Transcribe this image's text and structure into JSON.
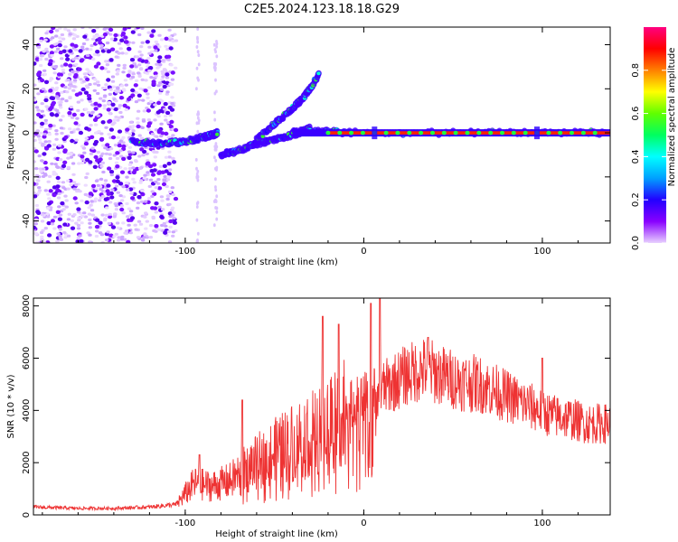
{
  "title": "C2E5.2024.123.18.18.G29",
  "chart_data": [
    {
      "type": "heatmap",
      "xlabel": "Height of straight line (km)",
      "ylabel": "Frequency (Hz)",
      "xlim": [
        -185,
        138
      ],
      "ylim": [
        -50,
        48
      ],
      "xticks": [
        -100,
        0,
        100
      ],
      "xtick_labels": [
        "-100",
        "0",
        "100"
      ],
      "yticks": [
        -40,
        -20,
        0,
        20,
        40
      ],
      "ytick_labels": [
        "-40",
        "-20",
        "0",
        "20",
        "40"
      ],
      "colorbar": {
        "label": "Normalized spectral amplitude",
        "range": [
          0,
          1
        ],
        "ticks": [
          0.0,
          0.2,
          0.4,
          0.6,
          0.8
        ],
        "tick_labels": [
          "0.0",
          "0.2",
          "0.4",
          "0.6",
          "0.8"
        ],
        "colormap": [
          "#e8d0ff",
          "#8800ff",
          "#2200ff",
          "#00a0ff",
          "#00ffff",
          "#00ff60",
          "#60ff00",
          "#ffff00",
          "#ff8000",
          "#ff0000",
          "#ff0080"
        ]
      },
      "traces": [
        {
          "x": [
            -130,
            -115,
            -100,
            -90,
            -85,
            -82
          ],
          "y": [
            -4,
            -5,
            -4,
            -2,
            -1,
            0
          ]
        },
        {
          "x": [
            -80,
            -70,
            -60,
            -50,
            -40,
            -30
          ],
          "y": [
            -10,
            -8,
            -5,
            -3,
            -1,
            2
          ]
        },
        {
          "x": [
            -60,
            -50,
            -40,
            -35,
            -30,
            -25
          ],
          "y": [
            -3,
            4,
            11,
            15,
            20,
            27
          ]
        },
        {
          "x": [
            -40,
            -20,
            0,
            50,
            100,
            138
          ],
          "y": [
            1,
            0.5,
            0,
            0,
            0,
            0
          ]
        }
      ],
      "grid": false
    },
    {
      "type": "line",
      "xlabel": "Height of straight line (km)",
      "ylabel": "SNR (10 * v/v)",
      "xlim": [
        -185,
        138
      ],
      "ylim": [
        0,
        8300
      ],
      "xticks": [
        -100,
        0,
        100
      ],
      "xtick_labels": [
        "-100",
        "0",
        "100"
      ],
      "yticks": [
        0,
        2000,
        4000,
        6000,
        8000
      ],
      "ytick_labels": [
        "0",
        "2000",
        "4000",
        "6000",
        "8000"
      ],
      "series": [
        {
          "color": "#ee3333",
          "x": [
            -185,
            -160,
            -140,
            -120,
            -105,
            -95,
            -85,
            -75,
            -65,
            -55,
            -45,
            -35,
            -25,
            -15,
            -5,
            5,
            15,
            25,
            35,
            45,
            55,
            65,
            75,
            85,
            95,
            105,
            115,
            125,
            138
          ],
          "y": [
            300,
            250,
            250,
            300,
            400,
            1200,
            1100,
            1300,
            1800,
            2200,
            2600,
            3000,
            3300,
            3900,
            4300,
            4600,
            5000,
            5400,
            5600,
            5300,
            5100,
            5000,
            4700,
            4400,
            4100,
            3800,
            3700,
            3500,
            3500
          ]
        }
      ],
      "spikes": [
        {
          "x": -92,
          "y": 2300
        },
        {
          "x": -68,
          "y": 4400
        },
        {
          "x": -23,
          "y": 7600
        },
        {
          "x": -14,
          "y": 7300
        },
        {
          "x": 4,
          "y": 8100
        },
        {
          "x": 9,
          "y": 8300
        },
        {
          "x": 36,
          "y": 6800
        },
        {
          "x": 100,
          "y": 6000
        }
      ],
      "grid": false
    }
  ]
}
